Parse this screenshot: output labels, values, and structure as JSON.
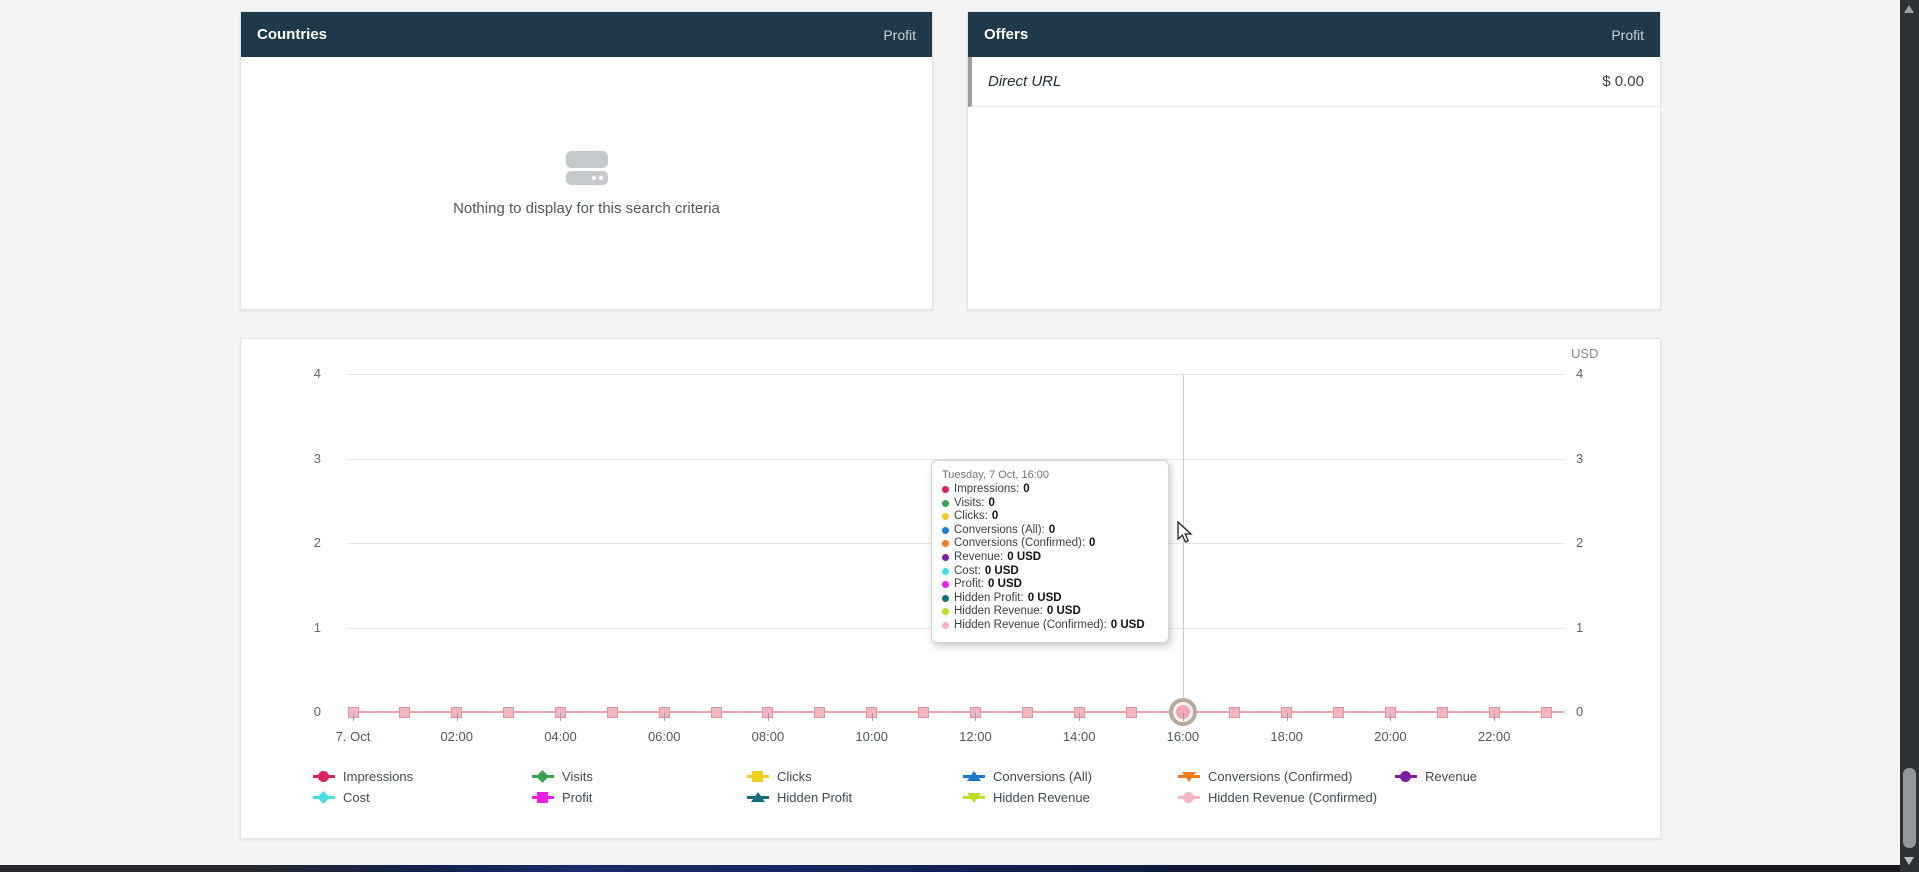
{
  "panels": {
    "countries": {
      "title": "Countries",
      "metric": "Profit",
      "empty_text": "Nothing to display for this search criteria"
    },
    "offers": {
      "title": "Offers",
      "metric": "Profit",
      "rows": [
        {
          "name": "Direct URL",
          "value": "$ 0.00"
        }
      ]
    }
  },
  "chart_data": {
    "type": "line",
    "title": "",
    "unit_label": "USD",
    "xlabel": "",
    "ylabel": "",
    "ylim": [
      0,
      4
    ],
    "yticks": [
      4,
      3,
      2,
      1,
      0
    ],
    "grid": true,
    "legend_position": "bottom",
    "x_tick_labels": [
      "7. Oct",
      "02:00",
      "04:00",
      "06:00",
      "08:00",
      "10:00",
      "12:00",
      "14:00",
      "16:00",
      "18:00",
      "20:00",
      "22:00"
    ],
    "points_per_hour_count": 24,
    "values_all_series": [
      0,
      0,
      0,
      0,
      0,
      0,
      0,
      0,
      0,
      0,
      0,
      0,
      0,
      0,
      0,
      0,
      0,
      0,
      0,
      0,
      0,
      0,
      0,
      0
    ],
    "selected_point_hour": 16,
    "series": [
      {
        "name": "Impressions",
        "color": "#dc2160",
        "shape": "circle",
        "tooltip_value": "0"
      },
      {
        "name": "Visits",
        "color": "#36a44e",
        "shape": "diamond",
        "tooltip_value": "0"
      },
      {
        "name": "Clicks",
        "color": "#f2cf1f",
        "shape": "square",
        "tooltip_value": "0"
      },
      {
        "name": "Conversions (All)",
        "color": "#1b79d2",
        "shape": "tri-up",
        "tooltip_value": "0"
      },
      {
        "name": "Conversions (Confirmed)",
        "color": "#ef7d1d",
        "shape": "tri-down",
        "tooltip_value": "0"
      },
      {
        "name": "Revenue",
        "color": "#7c1fa0",
        "shape": "circle",
        "tooltip_value": "0 USD"
      },
      {
        "name": "Cost",
        "color": "#45dfe8",
        "shape": "diamond",
        "tooltip_value": "0 USD"
      },
      {
        "name": "Profit",
        "color": "#ee1fe4",
        "shape": "square",
        "tooltip_value": "0 USD"
      },
      {
        "name": "Hidden Profit",
        "color": "#136f7c",
        "shape": "tri-up",
        "tooltip_value": "0 USD"
      },
      {
        "name": "Hidden Revenue",
        "color": "#bfdf25",
        "shape": "tri-down",
        "tooltip_value": "0 USD"
      },
      {
        "name": "Hidden Revenue (Confirmed)",
        "color": "#f5b6c1",
        "shape": "circle",
        "tooltip_value": "0 USD"
      }
    ],
    "tooltip": {
      "title": "Tuesday, 7 Oct, 16:00"
    },
    "marker_fill_at_zero": "#f6b4c0"
  },
  "colors": {
    "panel_header_bg": "#20394a",
    "accent_pink_line": "#e9a2b0"
  }
}
